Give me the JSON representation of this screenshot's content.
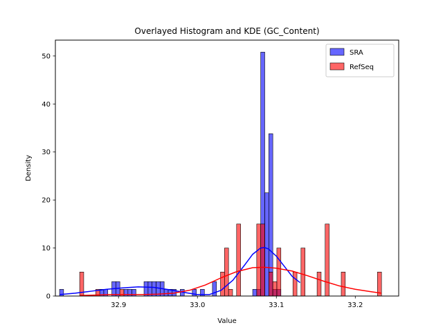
{
  "chart_data": {
    "type": "bar",
    "title": "Overlayed Histogram and KDE (GC_Content)",
    "xlabel": "Value",
    "ylabel": "Density",
    "xlim": [
      32.82,
      33.255
    ],
    "ylim": [
      0,
      53.3
    ],
    "xticks": [
      32.9,
      33.0,
      33.1,
      33.2
    ],
    "xtick_labels": [
      "32.9",
      "33.0",
      "33.1",
      "33.2"
    ],
    "yticks": [
      0,
      10,
      20,
      30,
      40,
      50
    ],
    "ytick_labels": [
      "0",
      "10",
      "20",
      "30",
      "40",
      "50"
    ],
    "grid": false,
    "legend": {
      "placement": "top-right",
      "entries": [
        "SRA",
        "RefSeq"
      ]
    },
    "series": [
      {
        "name": "SRA",
        "color": "#0000ff",
        "bin_width": 0.0051,
        "bins": [
          {
            "x": 32.8253,
            "y": 1.4
          },
          {
            "x": 32.8762,
            "y": 1.4
          },
          {
            "x": 32.8813,
            "y": 1.4
          },
          {
            "x": 32.8915,
            "y": 3.0
          },
          {
            "x": 32.8966,
            "y": 3.0
          },
          {
            "x": 32.9068,
            "y": 1.4
          },
          {
            "x": 32.9119,
            "y": 1.4
          },
          {
            "x": 32.917,
            "y": 1.4
          },
          {
            "x": 32.9323,
            "y": 3.0
          },
          {
            "x": 32.9374,
            "y": 3.0
          },
          {
            "x": 32.9425,
            "y": 3.0
          },
          {
            "x": 32.9476,
            "y": 3.0
          },
          {
            "x": 32.9527,
            "y": 3.0
          },
          {
            "x": 32.9578,
            "y": 1.4
          },
          {
            "x": 32.9629,
            "y": 1.4
          },
          {
            "x": 32.968,
            "y": 1.4
          },
          {
            "x": 32.9782,
            "y": 1.4
          },
          {
            "x": 32.9935,
            "y": 1.4
          },
          {
            "x": 33.0037,
            "y": 1.4
          },
          {
            "x": 33.019,
            "y": 3.0
          },
          {
            "x": 33.07,
            "y": 1.4
          },
          {
            "x": 33.0751,
            "y": 1.4
          },
          {
            "x": 33.0802,
            "y": 50.8
          },
          {
            "x": 33.0853,
            "y": 21.5
          },
          {
            "x": 33.0904,
            "y": 33.8
          },
          {
            "x": 33.0955,
            "y": 1.4
          },
          {
            "x": 33.1006,
            "y": 1.4
          }
        ],
        "kde": {
          "x": [
            32.8253,
            32.845,
            32.865,
            32.885,
            32.905,
            32.925,
            32.945,
            32.965,
            32.985,
            33.0,
            33.015,
            33.03,
            33.045,
            33.06,
            33.07,
            33.08,
            33.085,
            33.09,
            33.1,
            33.11,
            33.12,
            33.13
          ],
          "y": [
            0.3,
            0.6,
            1.0,
            1.4,
            1.7,
            1.9,
            1.8,
            1.3,
            0.7,
            0.3,
            0.3,
            1.2,
            3.3,
            6.5,
            8.7,
            10.0,
            10.1,
            9.8,
            8.3,
            6.2,
            4.1,
            2.8
          ]
        }
      },
      {
        "name": "RefSeq",
        "color": "#ff0000",
        "bin_width": 0.0051,
        "bins": [
          {
            "x": 32.8508,
            "y": 5.0
          },
          {
            "x": 32.8712,
            "y": 1.4
          },
          {
            "x": 32.9017,
            "y": 1.4
          },
          {
            "x": 33.0292,
            "y": 5.0
          },
          {
            "x": 33.0343,
            "y": 10.0
          },
          {
            "x": 33.0394,
            "y": 1.4
          },
          {
            "x": 33.0496,
            "y": 15.0
          },
          {
            "x": 33.0751,
            "y": 15.0
          },
          {
            "x": 33.0802,
            "y": 15.0
          },
          {
            "x": 33.0904,
            "y": 5.0
          },
          {
            "x": 33.0955,
            "y": 3.0
          },
          {
            "x": 33.1006,
            "y": 10.0
          },
          {
            "x": 33.121,
            "y": 5.0
          },
          {
            "x": 33.1312,
            "y": 10.0
          },
          {
            "x": 33.1516,
            "y": 5.0
          },
          {
            "x": 33.1618,
            "y": 15.0
          },
          {
            "x": 33.1822,
            "y": 5.0
          },
          {
            "x": 33.2281,
            "y": 5.0
          }
        ],
        "kde": {
          "x": [
            32.8508,
            32.87,
            32.89,
            32.91,
            32.93,
            32.95,
            32.97,
            32.99,
            33.01,
            33.03,
            33.05,
            33.07,
            33.085,
            33.1,
            33.12,
            33.14,
            33.16,
            33.18,
            33.2,
            33.22,
            33.2332
          ],
          "y": [
            0.1,
            0.2,
            0.3,
            0.3,
            0.3,
            0.4,
            0.6,
            1.2,
            2.3,
            3.8,
            5.1,
            5.9,
            6.0,
            5.8,
            5.2,
            4.2,
            3.1,
            2.1,
            1.4,
            0.9,
            0.6
          ]
        }
      }
    ]
  }
}
